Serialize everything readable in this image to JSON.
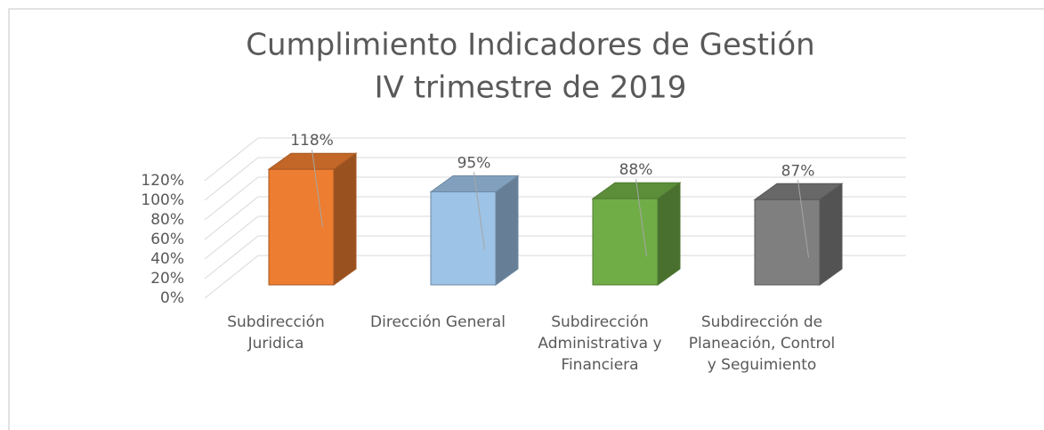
{
  "chart_data": {
    "type": "bar3d",
    "title": [
      "Cumplimiento Indicadores de Gestión",
      "IV trimestre de 2019"
    ],
    "categories": [
      "Subdirección Juridica",
      "Dirección General",
      "Subdirección Administrativa y Financiera",
      "Subdirección de Planeación, Control y Seguimiento"
    ],
    "values": [
      118,
      95,
      88,
      87
    ],
    "value_labels": [
      "118%",
      "95%",
      "88%",
      "87%"
    ],
    "colors": [
      "#ed7d31",
      "#9dc3e6",
      "#70ad47",
      "#7f7f7f"
    ],
    "ylim": [
      0,
      120
    ],
    "yticks": [
      {
        "value": 0,
        "label": "0%"
      },
      {
        "value": 20,
        "label": "20%"
      },
      {
        "value": 40,
        "label": "40%"
      },
      {
        "value": 60,
        "label": "60%"
      },
      {
        "value": 80,
        "label": "80%"
      },
      {
        "value": 100,
        "label": "100%"
      },
      {
        "value": 120,
        "label": "120%"
      }
    ],
    "grid": true
  }
}
